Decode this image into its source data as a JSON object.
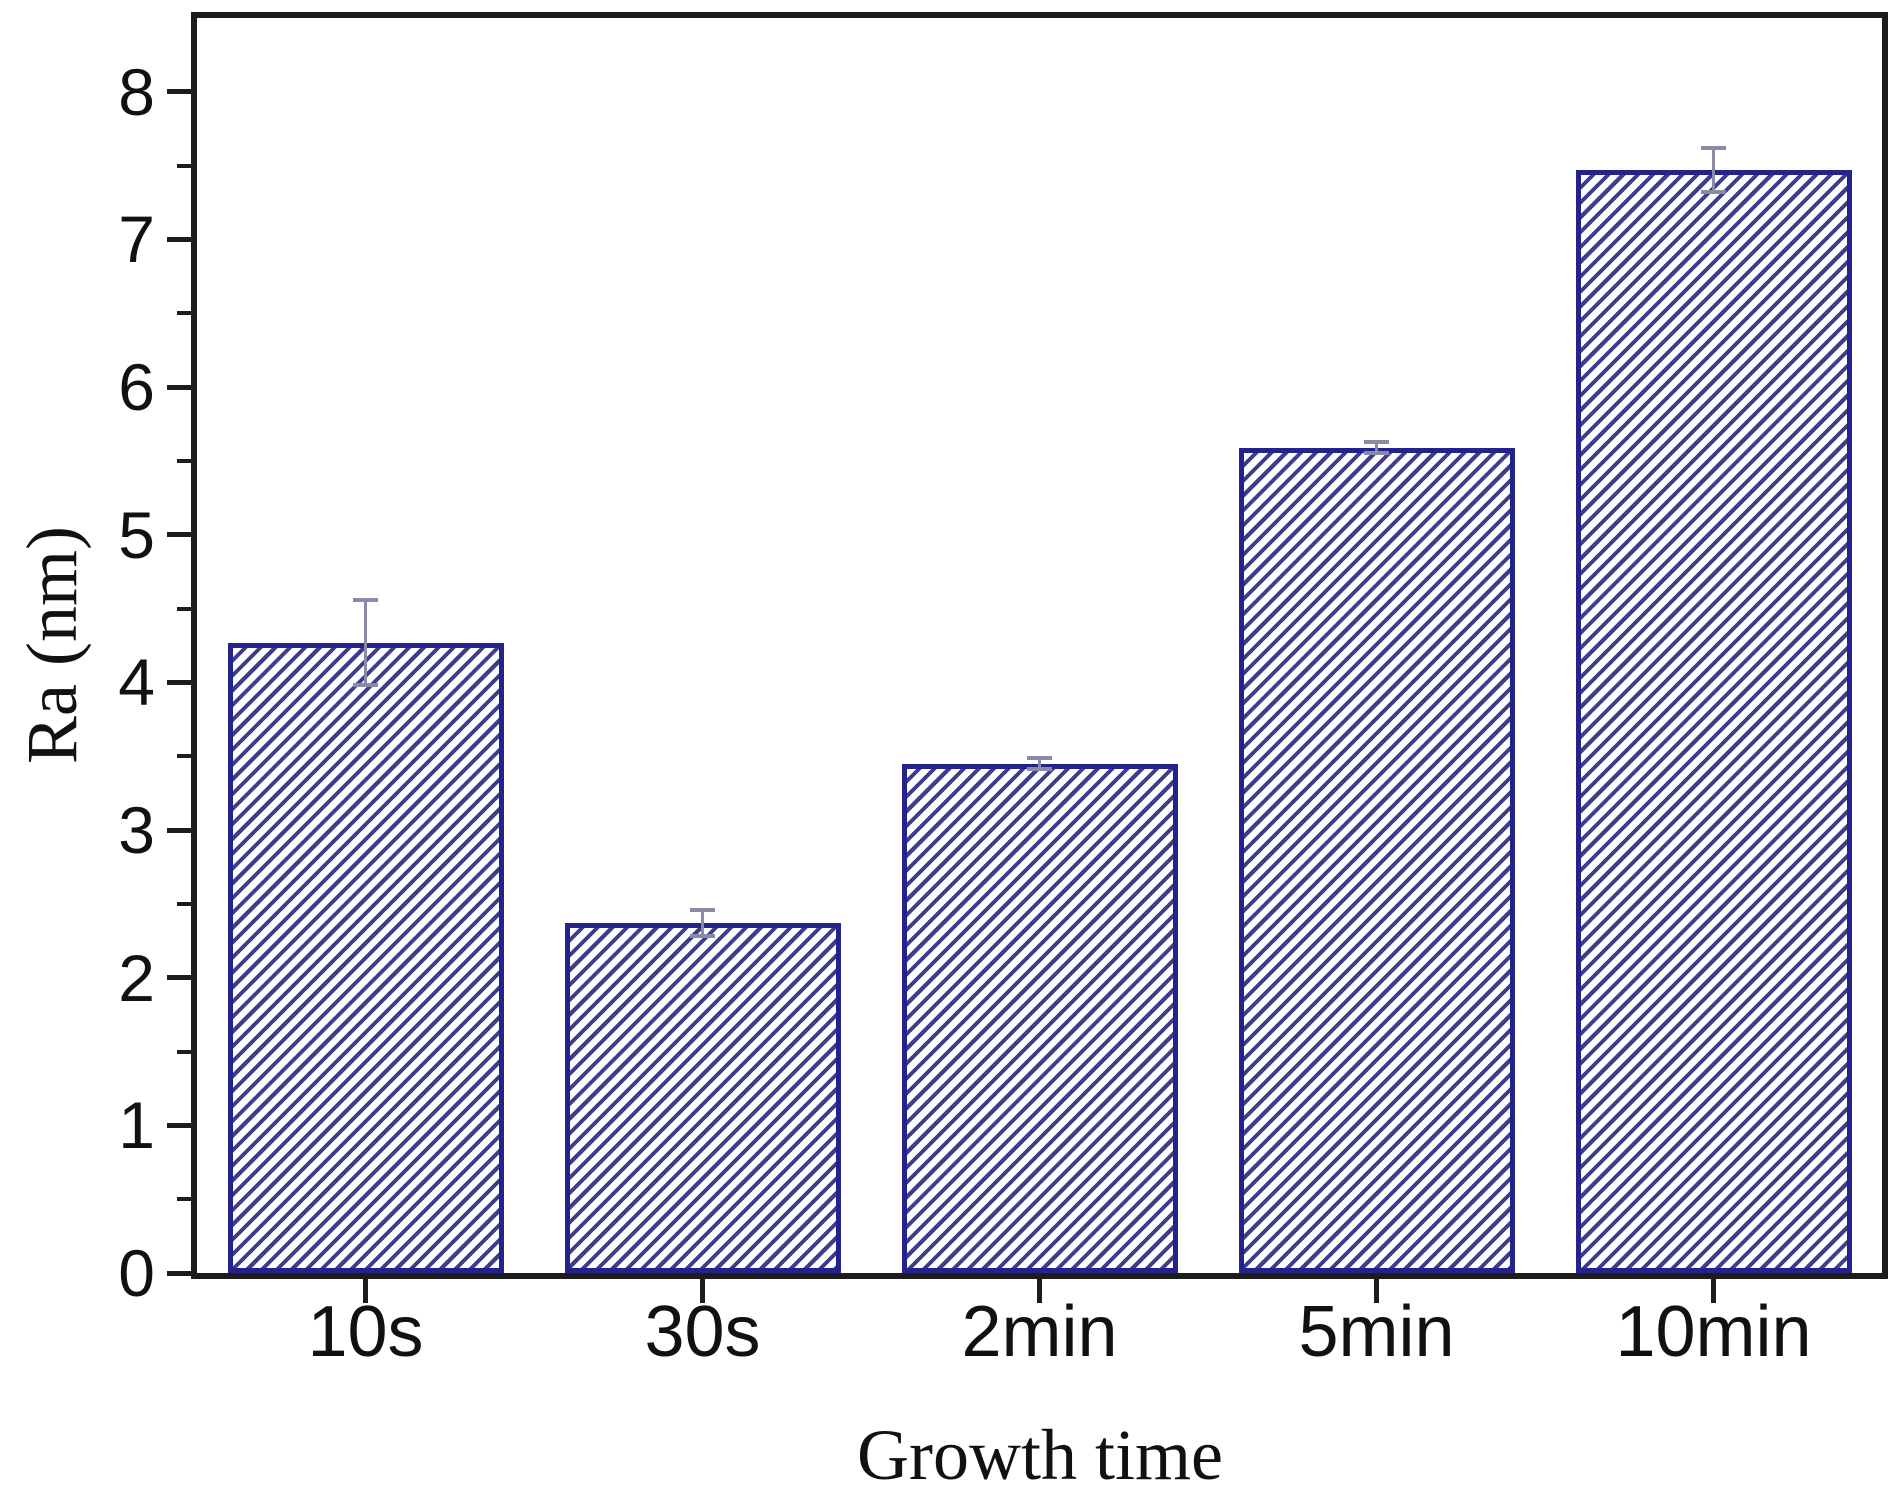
{
  "figure": {
    "background": "#ffffff"
  },
  "chart_data": {
    "type": "bar",
    "title": "",
    "xlabel": "Growth time",
    "ylabel": "Ra (nm)",
    "categories": [
      "10s",
      "30s",
      "2min",
      "5min",
      "10min"
    ],
    "values": [
      4.27,
      2.37,
      3.45,
      5.59,
      7.47
    ],
    "errors": [
      0.3,
      0.1,
      0.05,
      0.05,
      0.16
    ],
    "ylim": [
      0,
      8.5
    ],
    "ytick_major": [
      0,
      1,
      2,
      3,
      4,
      5,
      6,
      7,
      8
    ],
    "ytick_minor_step": 0.5,
    "grid": false,
    "legend": false,
    "bar_hatch": "diagonal-forward",
    "colors": {
      "bar_edge": "#23238b",
      "bar_hatch_line": "#3d3d90",
      "bar_fill": "#ffffff",
      "error_bar": "#8a8aa8",
      "axis": "#1c1c1c",
      "text": "#111111"
    }
  }
}
